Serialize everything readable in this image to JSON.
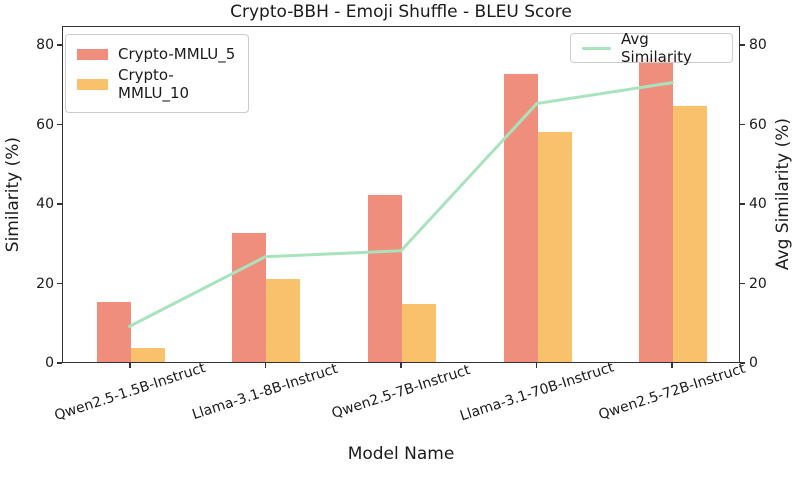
{
  "chart_data": {
    "type": "bar",
    "title": "Crypto-BBH - Emoji Shuffle - BLEU Score",
    "xlabel": "Model Name",
    "ylabel": "Similarity (%)",
    "ylabel_right": "Avg Similarity (%)",
    "categories": [
      "Qwen2.5-1.5B-Instruct",
      "Llama-3.1-8B-Instruct",
      "Qwen2.5-7B-Instruct",
      "Llama-3.1-70B-Instruct",
      "Qwen2.5-72B-Instruct"
    ],
    "series": [
      {
        "name": "Crypto-MMLU_5",
        "type": "bar",
        "color": "#EF8E7D",
        "values": [
          15,
          32.5,
          42,
          72.5,
          76.5
        ]
      },
      {
        "name": "Crypto-MMLU_10",
        "type": "bar",
        "color": "#FAC16D",
        "values": [
          3.5,
          21,
          14.5,
          58,
          64.5
        ]
      },
      {
        "name": "Avg Similarity",
        "type": "line",
        "color": "#A8E3BD",
        "values": [
          9.25,
          26.75,
          28.25,
          65.25,
          70.5
        ]
      }
    ],
    "ylim": [
      0,
      84.8
    ],
    "yticks": [
      0,
      20,
      40,
      60,
      80
    ],
    "grid": false,
    "legend_positions": [
      "upper left bars legend",
      "upper right line legend"
    ],
    "spine_color": "#333333",
    "text_color": "#1a1a1a"
  }
}
